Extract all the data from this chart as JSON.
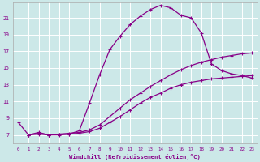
{
  "xlabel": "Windchill (Refroidissement éolien,°C)",
  "bg_color": "#cce8e8",
  "grid_color": "#ffffff",
  "line_color": "#880088",
  "xlim": [
    -0.5,
    23.5
  ],
  "ylim": [
    6.0,
    22.8
  ],
  "yticks": [
    7,
    9,
    11,
    13,
    15,
    17,
    19,
    21
  ],
  "xticks": [
    0,
    1,
    2,
    3,
    4,
    5,
    6,
    7,
    8,
    9,
    10,
    11,
    12,
    13,
    14,
    15,
    16,
    17,
    18,
    19,
    20,
    21,
    22,
    23
  ],
  "curve1_x": [
    0,
    1,
    2,
    3,
    4,
    5,
    6,
    7,
    8,
    9,
    10,
    11,
    12,
    13,
    14,
    15,
    16,
    17,
    18,
    19,
    20,
    21,
    22,
    23
  ],
  "curve1_y": [
    8.5,
    7.0,
    7.3,
    7.0,
    7.0,
    7.1,
    7.5,
    10.8,
    14.2,
    17.2,
    18.8,
    20.2,
    21.2,
    22.0,
    22.5,
    22.2,
    21.3,
    21.0,
    19.2,
    15.5,
    14.7,
    14.3,
    14.1,
    13.8
  ],
  "curve2_x": [
    1,
    2,
    3,
    4,
    5,
    6,
    7,
    8,
    9,
    10,
    11,
    12,
    13,
    14,
    15,
    16,
    17,
    18,
    19,
    20,
    21,
    22,
    23
  ],
  "curve2_y": [
    7.0,
    7.2,
    7.0,
    7.1,
    7.2,
    7.3,
    7.6,
    8.2,
    9.2,
    10.2,
    11.2,
    12.0,
    12.8,
    13.5,
    14.2,
    14.8,
    15.3,
    15.7,
    16.0,
    16.3,
    16.5,
    16.7,
    16.8
  ],
  "curve3_x": [
    1,
    2,
    3,
    4,
    5,
    6,
    7,
    8,
    9,
    10,
    11,
    12,
    13,
    14,
    15,
    16,
    17,
    18,
    19,
    20,
    21,
    22,
    23
  ],
  "curve3_y": [
    7.0,
    7.1,
    7.0,
    7.05,
    7.1,
    7.2,
    7.4,
    7.8,
    8.5,
    9.2,
    10.0,
    10.8,
    11.5,
    12.0,
    12.6,
    13.0,
    13.3,
    13.5,
    13.7,
    13.8,
    13.9,
    14.0,
    14.1
  ]
}
